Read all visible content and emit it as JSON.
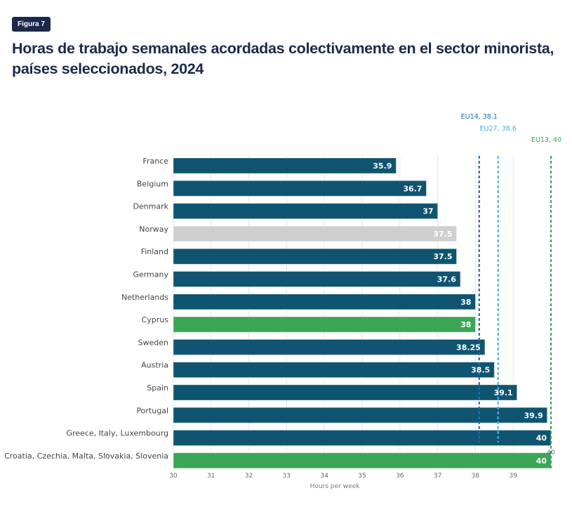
{
  "badge": "Figura 7",
  "title": "Horas de trabajo semanales acordadas colectivamente en el sector minorista, países seleccionados, 2024",
  "colors": {
    "default": "#0f5470",
    "highlight": "#3ba655",
    "muted": "#cfcfcf",
    "eu14": "#1f6fb0",
    "eu27": "#4aafe8",
    "eu13": "#3ba655",
    "grid": "#e6e6e6"
  },
  "chart_data": {
    "type": "bar",
    "orientation": "horizontal",
    "title": "Horas de trabajo semanales acordadas colectivamente en el sector minorista, países seleccionados, 2024",
    "xlabel": "Hours per week",
    "ylabel": "",
    "xlim": [
      30,
      40
    ],
    "xticks": [
      "30",
      "31",
      "32",
      "33",
      "34",
      "35",
      "36",
      "37",
      "38",
      "39"
    ],
    "grid": true,
    "categories": [
      "France",
      "Belgium",
      "Denmark",
      "Norway",
      "Finland",
      "Germany",
      "Netherlands",
      "Cyprus",
      "Sweden",
      "Austria",
      "Spain",
      "Portugal",
      "Greece, Italy, Luxembourg",
      "Croatia, Czechia, Malta, Slovakia, Slovenia"
    ],
    "values": [
      35.9,
      36.7,
      37,
      37.5,
      37.5,
      37.6,
      38,
      38,
      38.25,
      38.5,
      39.1,
      39.9,
      40,
      40
    ],
    "value_labels": [
      "35.9",
      "36.7",
      "37",
      "37.5",
      "37.5",
      "37.6",
      "38",
      "38",
      "38.25",
      "38.5",
      "39.1",
      "39.9",
      "40",
      "40"
    ],
    "bar_groups": [
      "default",
      "default",
      "default",
      "muted",
      "default",
      "default",
      "default",
      "highlight",
      "default",
      "default",
      "default",
      "default",
      "default",
      "highlight"
    ],
    "reference_lines": [
      {
        "name": "EU14",
        "value": 38.1,
        "label": "EU14, 38.1",
        "color_key": "eu14"
      },
      {
        "name": "EU27",
        "value": 38.6,
        "label": "EU27, 38.6",
        "color_key": "eu27"
      },
      {
        "name": "EU13",
        "value": 40,
        "label": "EU13, 40",
        "color_key": "eu13"
      }
    ],
    "extra_annotation": "40"
  }
}
